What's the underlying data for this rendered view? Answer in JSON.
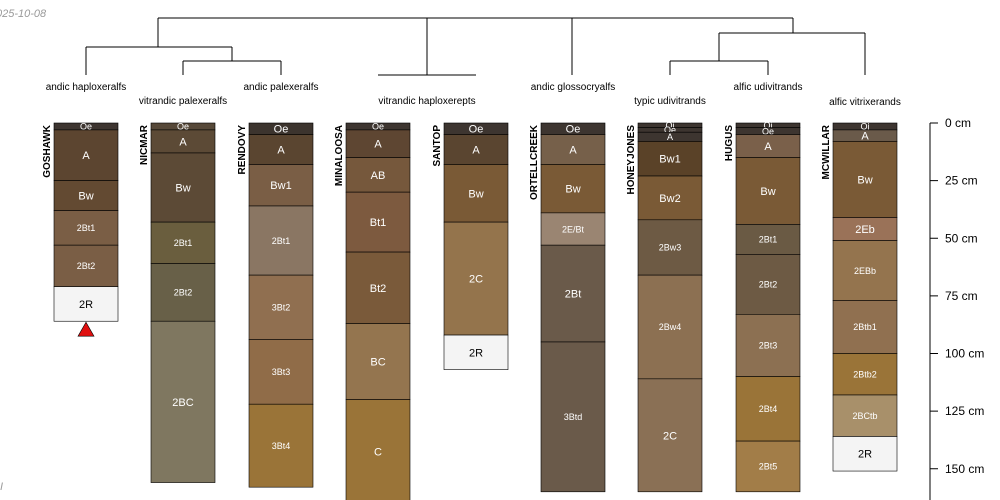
{
  "date_text": "025-10-08",
  "corner_text": "I",
  "depth_axis": {
    "unit": "cm",
    "ticks": [
      {
        "depth": 0,
        "label": "0 cm"
      },
      {
        "depth": 25,
        "label": "25 cm"
      },
      {
        "depth": 50,
        "label": "50 cm"
      },
      {
        "depth": 75,
        "label": "75 cm"
      },
      {
        "depth": 100,
        "label": "100 cm"
      },
      {
        "depth": 125,
        "label": "125 cm"
      },
      {
        "depth": 150,
        "label": "150 cm"
      }
    ]
  },
  "taxa_labels": [
    "andic haploxeralfs",
    "vitrandic palexeralfs",
    "andic palexeralfs",
    "vitrandic haploxerepts",
    "andic glossocryalfs",
    "typic udivitrands",
    "alfic udivitrands",
    "alfic vitrixerands"
  ],
  "profiles": [
    {
      "name": "GOSHAWK",
      "marker": "red-triangle",
      "horizons": [
        {
          "name": "Oe",
          "top": 0,
          "bottom": 3,
          "color": "#3d3530"
        },
        {
          "name": "A",
          "top": 3,
          "bottom": 25,
          "color": "#5c4530"
        },
        {
          "name": "Bw",
          "top": 25,
          "bottom": 38,
          "color": "#634a32"
        },
        {
          "name": "2Bt1",
          "top": 38,
          "bottom": 53,
          "color": "#7a5e45"
        },
        {
          "name": "2Bt2",
          "top": 53,
          "bottom": 71,
          "color": "#7a5e45"
        },
        {
          "name": "2R",
          "top": 71,
          "bottom": 86,
          "color": "#f4f4f4"
        }
      ]
    },
    {
      "name": "NICMAR",
      "horizons": [
        {
          "name": "Oe",
          "top": 0,
          "bottom": 3,
          "color": "#564838"
        },
        {
          "name": "A",
          "top": 3,
          "bottom": 13,
          "color": "#5c4a36"
        },
        {
          "name": "Bw",
          "top": 13,
          "bottom": 43,
          "color": "#5c4a36"
        },
        {
          "name": "2Bt1",
          "top": 43,
          "bottom": 61,
          "color": "#6a5e3e"
        },
        {
          "name": "2Bt2",
          "top": 61,
          "bottom": 86,
          "color": "#686048"
        },
        {
          "name": "2BC",
          "top": 86,
          "bottom": 156,
          "color": "#7f7760"
        }
      ]
    },
    {
      "name": "RENDOVY",
      "horizons": [
        {
          "name": "Oe",
          "top": 0,
          "bottom": 5,
          "color": "#3c342e"
        },
        {
          "name": "A",
          "top": 5,
          "bottom": 18,
          "color": "#5a4530"
        },
        {
          "name": "Bw1",
          "top": 18,
          "bottom": 36,
          "color": "#7a5e45"
        },
        {
          "name": "2Bt1",
          "top": 36,
          "bottom": 66,
          "color": "#8a7663"
        },
        {
          "name": "3Bt2",
          "top": 66,
          "bottom": 94,
          "color": "#906f50"
        },
        {
          "name": "3Bt3",
          "top": 94,
          "bottom": 122,
          "color": "#906c48"
        },
        {
          "name": "3Bt4",
          "top": 122,
          "bottom": 158,
          "color": "#9a7438"
        }
      ]
    },
    {
      "name": "MINALOOSA",
      "horizons": [
        {
          "name": "Oe",
          "top": 0,
          "bottom": 3,
          "color": "#3d3530"
        },
        {
          "name": "A",
          "top": 3,
          "bottom": 15,
          "color": "#5e4632"
        },
        {
          "name": "AB",
          "top": 15,
          "bottom": 30,
          "color": "#76583c"
        },
        {
          "name": "Bt1",
          "top": 30,
          "bottom": 56,
          "color": "#7d5a3f"
        },
        {
          "name": "Bt2",
          "top": 56,
          "bottom": 87,
          "color": "#7a5a3a"
        },
        {
          "name": "BC",
          "top": 87,
          "bottom": 120,
          "color": "#94754f"
        },
        {
          "name": "C",
          "top": 120,
          "bottom": 165,
          "color": "#9a7438"
        }
      ]
    },
    {
      "name": "SANTOP",
      "horizons": [
        {
          "name": "Oe",
          "top": 0,
          "bottom": 5,
          "color": "#3d3530"
        },
        {
          "name": "A",
          "top": 5,
          "bottom": 18,
          "color": "#5a4530"
        },
        {
          "name": "Bw",
          "top": 18,
          "bottom": 43,
          "color": "#7a5a36"
        },
        {
          "name": "2C",
          "top": 43,
          "bottom": 92,
          "color": "#94744c"
        },
        {
          "name": "2R",
          "top": 92,
          "bottom": 107,
          "color": "#f4f4f4"
        }
      ]
    },
    {
      "name": "ORTELLCREEK",
      "horizons": [
        {
          "name": "Oe",
          "top": 0,
          "bottom": 5,
          "color": "#3d3530"
        },
        {
          "name": "A",
          "top": 5,
          "bottom": 18,
          "color": "#76604a"
        },
        {
          "name": "Bw",
          "top": 18,
          "bottom": 39,
          "color": "#7a5a36"
        },
        {
          "name": "2E/Bt",
          "top": 39,
          "bottom": 53,
          "color": "#9a8572"
        },
        {
          "name": "2Bt",
          "top": 53,
          "bottom": 95,
          "color": "#6a5a4a"
        },
        {
          "name": "3Btd",
          "top": 95,
          "bottom": 160,
          "color": "#6a5a4a"
        }
      ]
    },
    {
      "name": "HONEYJONES",
      "horizons": [
        {
          "name": "Oi",
          "top": 0,
          "bottom": 2,
          "color": "#3d3530"
        },
        {
          "name": "Oe",
          "top": 2,
          "bottom": 4,
          "color": "#3d3530"
        },
        {
          "name": "A",
          "top": 4,
          "bottom": 8,
          "color": "#3d3530"
        },
        {
          "name": "Bw1",
          "top": 8,
          "bottom": 23,
          "color": "#5a4228"
        },
        {
          "name": "Bw2",
          "top": 23,
          "bottom": 42,
          "color": "#7a5a36"
        },
        {
          "name": "2Bw3",
          "top": 42,
          "bottom": 66,
          "color": "#6d5a44"
        },
        {
          "name": "2Bw4",
          "top": 66,
          "bottom": 111,
          "color": "#8c7052"
        },
        {
          "name": "2C",
          "top": 111,
          "bottom": 160,
          "color": "#8a7055"
        }
      ]
    },
    {
      "name": "HUGUS",
      "horizons": [
        {
          "name": "Oi",
          "top": 0,
          "bottom": 2,
          "color": "#3d3530"
        },
        {
          "name": "Oe",
          "top": 2,
          "bottom": 5,
          "color": "#3d3530"
        },
        {
          "name": "A",
          "top": 5,
          "bottom": 15,
          "color": "#7a604a"
        },
        {
          "name": "Bw",
          "top": 15,
          "bottom": 44,
          "color": "#7a5a36"
        },
        {
          "name": "2Bt1",
          "top": 44,
          "bottom": 57,
          "color": "#6a5a44"
        },
        {
          "name": "2Bt2",
          "top": 57,
          "bottom": 83,
          "color": "#6d5a44"
        },
        {
          "name": "2Bt3",
          "top": 83,
          "bottom": 110,
          "color": "#8c7052"
        },
        {
          "name": "2Bt4",
          "top": 110,
          "bottom": 138,
          "color": "#9a7438"
        },
        {
          "name": "2Bt5",
          "top": 138,
          "bottom": 160,
          "color": "#a27d48"
        }
      ]
    },
    {
      "name": "MCWILLAR",
      "horizons": [
        {
          "name": "Oi",
          "top": 0,
          "bottom": 3,
          "color": "#3d3530"
        },
        {
          "name": "A",
          "top": 3,
          "bottom": 8,
          "color": "#6a5a4a"
        },
        {
          "name": "Bw",
          "top": 8,
          "bottom": 41,
          "color": "#7a5a36"
        },
        {
          "name": "2Eb",
          "top": 41,
          "bottom": 51,
          "color": "#9a7258"
        },
        {
          "name": "2EBb",
          "top": 51,
          "bottom": 77,
          "color": "#94744e"
        },
        {
          "name": "2Btb1",
          "top": 77,
          "bottom": 100,
          "color": "#907050"
        },
        {
          "name": "2Btb2",
          "top": 100,
          "bottom": 118,
          "color": "#9a7438"
        },
        {
          "name": "2BCtb",
          "top": 118,
          "bottom": 136,
          "color": "#a8906a"
        },
        {
          "name": "2R",
          "top": 136,
          "bottom": 151,
          "color": "#f4f4f4"
        }
      ]
    }
  ]
}
